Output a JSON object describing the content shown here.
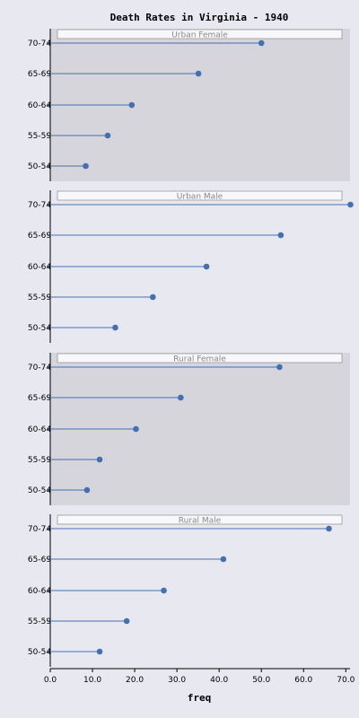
{
  "chart_data": {
    "type": "lollipop",
    "title": "Death Rates in Virginia - 1940",
    "xlabel": "freq",
    "xlim": [
      0,
      71
    ],
    "xticks": [
      "0.0",
      "10.0",
      "20.0",
      "30.0",
      "40.0",
      "50.0",
      "60.0",
      "70.0"
    ],
    "categories": [
      "70-74",
      "65-69",
      "60-64",
      "55-59",
      "50-54"
    ],
    "panels": [
      {
        "name": "Urban Female",
        "shaded": true,
        "values": [
          50.0,
          35.1,
          19.3,
          13.6,
          8.4
        ]
      },
      {
        "name": "Urban Male",
        "shaded": false,
        "values": [
          71.1,
          54.6,
          37.0,
          24.3,
          15.4
        ]
      },
      {
        "name": "Rural Female",
        "shaded": true,
        "values": [
          54.3,
          30.9,
          20.3,
          11.7,
          8.7
        ]
      },
      {
        "name": "Rural Male",
        "shaded": false,
        "values": [
          66.0,
          41.0,
          26.9,
          18.1,
          11.7
        ]
      }
    ],
    "colors": {
      "point": "#4470b0",
      "panel_shaded": "#d5d5db",
      "background": "#e8e8f0",
      "strip": "#f8f8fc"
    }
  }
}
